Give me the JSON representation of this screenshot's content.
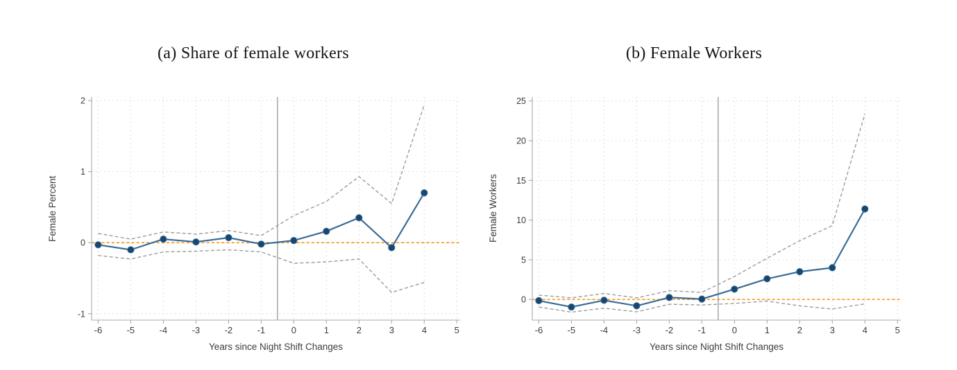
{
  "figure": {
    "background": "#ffffff",
    "panels": [
      {
        "caption": "(a) Share of female workers",
        "ylabel": "Female Percent",
        "xlabel": "Years since Night Shift Changes"
      },
      {
        "caption": "(b) Female Workers",
        "ylabel": "Female Workers",
        "xlabel": "Years since Night Shift Changes"
      }
    ]
  },
  "colors": {
    "estimate_line": "#3a6b96",
    "marker_fill": "#17466f",
    "ci_line": "#9b9b9b",
    "zero_line": "#f79b1d",
    "event_line": "#8f8f8f",
    "axis": "#a8a8a8",
    "tick_label": "#3c3c3c",
    "grid": "#d6d6d6",
    "title": "#141414"
  },
  "chart_data": [
    {
      "type": "line",
      "title": "(a) Share of female workers",
      "xlabel": "Years since Night Shift Changes",
      "ylabel": "Female Percent",
      "x": [
        -6,
        -5,
        -4,
        -3,
        -2,
        -1,
        0,
        1,
        2,
        3,
        4
      ],
      "series": [
        {
          "name": "Point estimate",
          "style": "solid-markers",
          "values": [
            -0.03,
            -0.1,
            0.05,
            0.01,
            0.07,
            -0.02,
            0.03,
            0.16,
            0.35,
            -0.07,
            0.7
          ]
        },
        {
          "name": "95% CI upper",
          "style": "dashed",
          "values": [
            0.13,
            0.05,
            0.15,
            0.12,
            0.17,
            0.1,
            0.38,
            0.58,
            0.93,
            0.55,
            1.94
          ]
        },
        {
          "name": "95% CI lower",
          "style": "dashed",
          "values": [
            -0.18,
            -0.23,
            -0.13,
            -0.12,
            -0.1,
            -0.13,
            -0.29,
            -0.27,
            -0.23,
            -0.7,
            -0.56
          ]
        }
      ],
      "reference_lines": {
        "horizontal_y": 0,
        "vertical_x": -0.5
      },
      "xticks": [
        -6,
        -5,
        -4,
        -3,
        -2,
        -1,
        0,
        1,
        2,
        3,
        4,
        5
      ],
      "yticks": [
        -1,
        0,
        1,
        2
      ],
      "xlim": [
        -6.2,
        5.1
      ],
      "ylim": [
        -1.09,
        2.05
      ],
      "grid": true,
      "legend": false
    },
    {
      "type": "line",
      "title": "(b) Female Workers",
      "xlabel": "Years since Night Shift Changes",
      "ylabel": "Female Workers",
      "x": [
        -6,
        -5,
        -4,
        -3,
        -2,
        -1,
        0,
        1,
        2,
        3,
        4
      ],
      "series": [
        {
          "name": "Point estimate",
          "style": "solid-markers",
          "values": [
            -0.15,
            -0.95,
            -0.1,
            -0.8,
            0.25,
            0.05,
            1.3,
            2.6,
            3.5,
            4.0,
            11.4
          ]
        },
        {
          "name": "95% CI upper",
          "style": "dashed",
          "values": [
            0.55,
            0.2,
            0.75,
            0.2,
            1.1,
            0.9,
            2.9,
            5.2,
            7.4,
            9.3,
            23.4
          ]
        },
        {
          "name": "95% CI lower",
          "style": "dashed",
          "values": [
            -0.95,
            -1.6,
            -1.1,
            -1.55,
            -0.6,
            -0.7,
            -0.5,
            -0.2,
            -0.8,
            -1.2,
            -0.55
          ]
        }
      ],
      "reference_lines": {
        "horizontal_y": 0,
        "vertical_x": -0.5
      },
      "xticks": [
        -6,
        -5,
        -4,
        -3,
        -2,
        -1,
        0,
        1,
        2,
        3,
        4,
        5
      ],
      "yticks": [
        0,
        5,
        10,
        15,
        20,
        25
      ],
      "xlim": [
        -6.2,
        5.1
      ],
      "ylim": [
        -2.6,
        25.5
      ],
      "grid": true,
      "legend": false
    }
  ]
}
